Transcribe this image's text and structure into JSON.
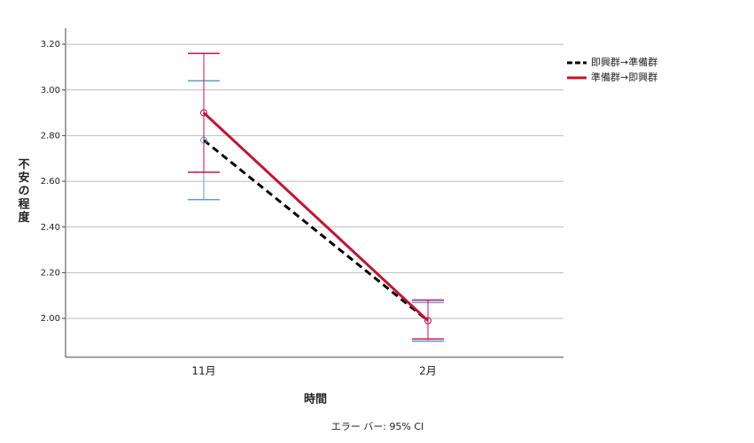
{
  "chart_data": {
    "type": "line",
    "x_label": "時間",
    "y_label": "不安の程度",
    "footnote": "エラー バー: 95% CI",
    "categories": [
      "11月",
      "2月"
    ],
    "ylim": [
      1.83,
      3.27
    ],
    "yticks": [
      {
        "value": 2.0,
        "label": "2.00"
      },
      {
        "value": 2.2,
        "label": "2.20"
      },
      {
        "value": 2.4,
        "label": "2.40"
      },
      {
        "value": 2.6,
        "label": "2.60"
      },
      {
        "value": 2.8,
        "label": "2.80"
      },
      {
        "value": 3.0,
        "label": "3.00"
      },
      {
        "value": 3.2,
        "label": "3.20"
      }
    ],
    "grid": true,
    "legend": "right",
    "series": [
      {
        "name": "即興群→準備群",
        "color": "#000000",
        "dash": true,
        "error_bar_color": "#5b9bd5",
        "values": [
          2.78,
          1.99
        ],
        "ci_lower": [
          2.52,
          1.9
        ],
        "ci_upper": [
          3.04,
          2.07
        ]
      },
      {
        "name": "準備群→即興群",
        "color": "#c8102e",
        "dash": false,
        "error_bar_color": "#c8104e",
        "values": [
          2.9,
          1.99
        ],
        "ci_lower": [
          2.64,
          1.91
        ],
        "ci_upper": [
          3.16,
          2.08
        ]
      }
    ]
  }
}
